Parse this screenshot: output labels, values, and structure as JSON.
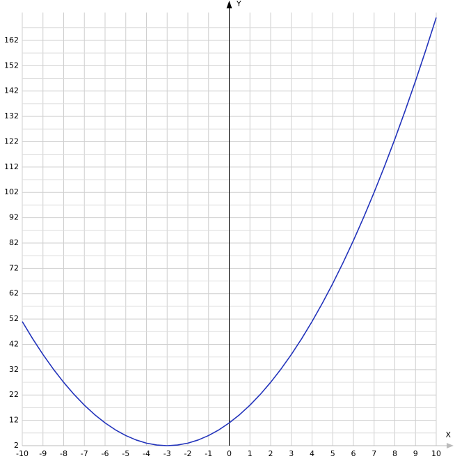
{
  "chart_data": {
    "type": "line",
    "x_label": "X",
    "y_label": "Y",
    "x": [
      -10,
      -9.5,
      -9,
      -8.5,
      -8,
      -7.5,
      -7,
      -6.5,
      -6,
      -5.5,
      -5,
      -4.5,
      -4,
      -3.5,
      -3,
      -2.5,
      -2,
      -1.5,
      -1,
      -0.5,
      0,
      0.5,
      1,
      1.5,
      2,
      2.5,
      3,
      3.5,
      4,
      4.5,
      5,
      5.5,
      6,
      6.5,
      7,
      7.5,
      8,
      8.5,
      9,
      9.5,
      10
    ],
    "series": [
      {
        "color": "#2233bb",
        "values": [
          51,
          44.25,
          38,
          32.25,
          27,
          22.25,
          18,
          14.25,
          11,
          8.25,
          6,
          4.25,
          3,
          2.25,
          2,
          2.25,
          3,
          4.25,
          6,
          8.25,
          11,
          14.25,
          18,
          22.25,
          27,
          32.25,
          38,
          44.25,
          51,
          58.25,
          66,
          74.25,
          83,
          92.25,
          102,
          112.25,
          123,
          134.25,
          146,
          158.25,
          171
        ]
      }
    ],
    "xlim": [
      -10,
      10
    ],
    "ylim": [
      2,
      172
    ],
    "xticks": [
      -10,
      -9,
      -8,
      -7,
      -6,
      -5,
      -4,
      -3,
      -2,
      -1,
      0,
      1,
      2,
      3,
      4,
      5,
      6,
      7,
      8,
      9,
      10
    ],
    "yticks": [
      2,
      12,
      22,
      32,
      42,
      52,
      62,
      72,
      82,
      92,
      102,
      112,
      122,
      132,
      142,
      152,
      162
    ],
    "grid": true
  }
}
